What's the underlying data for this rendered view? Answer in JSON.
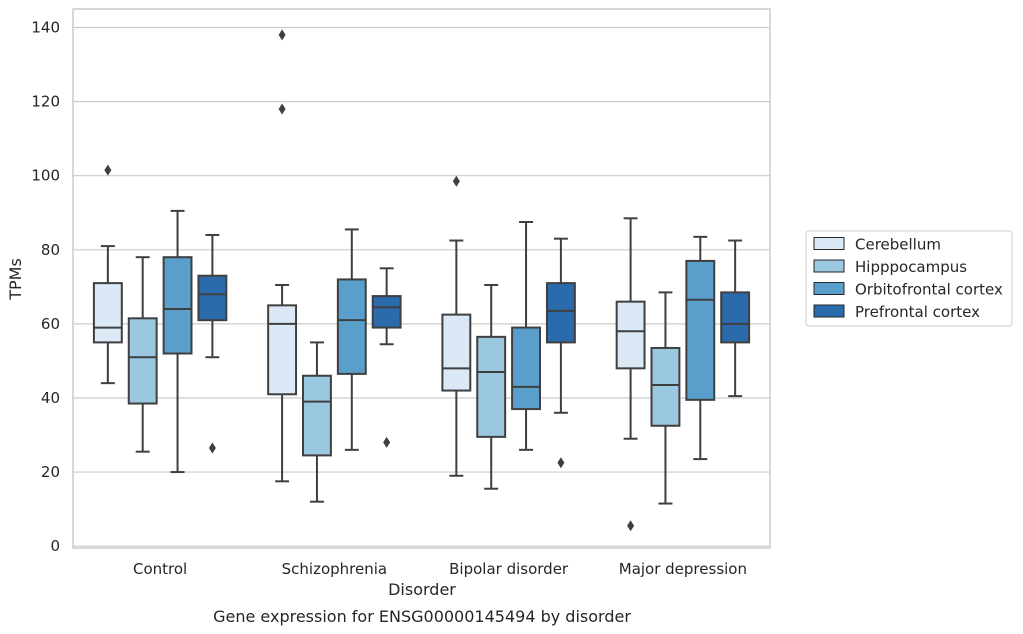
{
  "caption": "Gene expression for ENSG00000145494 by disorder",
  "chart_data": {
    "type": "boxplot",
    "title": "",
    "xlabel": "Disorder",
    "ylabel": "TPMs",
    "ylim": [
      -0.5,
      145
    ],
    "yticks": [
      0,
      20,
      40,
      60,
      80,
      100,
      120,
      140
    ],
    "grid": "horizontal",
    "legend_position": "right, outside plot",
    "categories": [
      "Control",
      "Schizophrenia",
      "Bipolar disorder",
      "Major depression"
    ],
    "series": [
      {
        "name": "Cerebellum",
        "color": "#dbe9f6",
        "boxes": [
          {
            "whisker_low": 44,
            "q1": 55,
            "median": 59,
            "q3": 71,
            "whisker_high": 81,
            "outliers": [
              101.5
            ]
          },
          {
            "whisker_low": 17.5,
            "q1": 41,
            "median": 60,
            "q3": 65,
            "whisker_high": 70.5,
            "outliers": [
              118,
              138
            ]
          },
          {
            "whisker_low": 19,
            "q1": 42,
            "median": 48,
            "q3": 62.5,
            "whisker_high": 82.5,
            "outliers": [
              98.5
            ]
          },
          {
            "whisker_low": 29,
            "q1": 48,
            "median": 58,
            "q3": 66,
            "whisker_high": 88.5,
            "outliers": [
              5.5
            ]
          }
        ]
      },
      {
        "name": "Hipppocampus",
        "color": "#9ac8e0",
        "boxes": [
          {
            "whisker_low": 25.5,
            "q1": 38.5,
            "median": 51,
            "q3": 61.5,
            "whisker_high": 78,
            "outliers": []
          },
          {
            "whisker_low": 12,
            "q1": 24.5,
            "median": 39,
            "q3": 46,
            "whisker_high": 55,
            "outliers": []
          },
          {
            "whisker_low": 15.5,
            "q1": 29.5,
            "median": 47,
            "q3": 56.5,
            "whisker_high": 70.5,
            "outliers": []
          },
          {
            "whisker_low": 11.5,
            "q1": 32.5,
            "median": 43.5,
            "q3": 53.5,
            "whisker_high": 68.5,
            "outliers": []
          }
        ]
      },
      {
        "name": "Orbitofrontal cortex",
        "color": "#5a9fcc",
        "boxes": [
          {
            "whisker_low": 20,
            "q1": 52,
            "median": 64,
            "q3": 78,
            "whisker_high": 90.5,
            "outliers": []
          },
          {
            "whisker_low": 26,
            "q1": 46.5,
            "median": 61,
            "q3": 72,
            "whisker_high": 85.5,
            "outliers": []
          },
          {
            "whisker_low": 26,
            "q1": 37,
            "median": 43,
            "q3": 59,
            "whisker_high": 87.5,
            "outliers": []
          },
          {
            "whisker_low": 23.5,
            "q1": 39.5,
            "median": 66.5,
            "q3": 77,
            "whisker_high": 83.5,
            "outliers": []
          }
        ]
      },
      {
        "name": "Prefrontal cortex",
        "color": "#2b6aab",
        "boxes": [
          {
            "whisker_low": 51,
            "q1": 61,
            "median": 68,
            "q3": 73,
            "whisker_high": 84,
            "outliers": [
              26.5
            ]
          },
          {
            "whisker_low": 54.5,
            "q1": 59,
            "median": 64.5,
            "q3": 67.5,
            "whisker_high": 75,
            "outliers": [
              28
            ]
          },
          {
            "whisker_low": 36,
            "q1": 55,
            "median": 63.5,
            "q3": 71,
            "whisker_high": 83,
            "outliers": [
              22.5
            ]
          },
          {
            "whisker_low": 40.5,
            "q1": 55,
            "median": 60,
            "q3": 68.5,
            "whisker_high": 82.5,
            "outliers": []
          }
        ]
      }
    ]
  }
}
